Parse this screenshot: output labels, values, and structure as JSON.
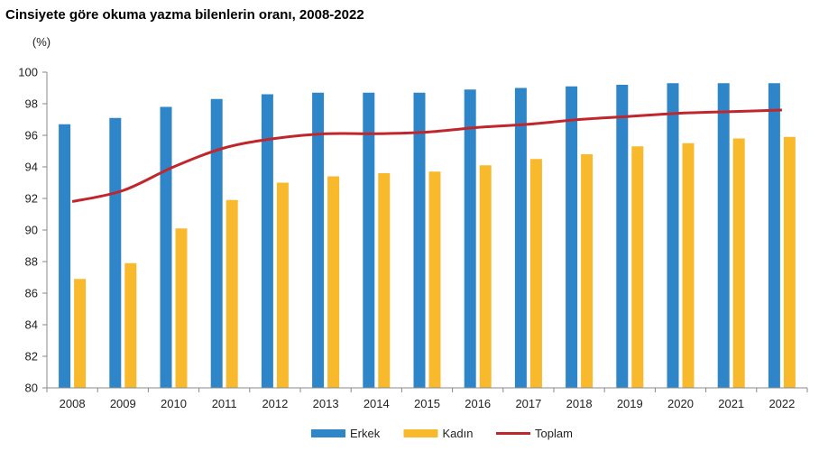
{
  "title": "Cinsiyete göre okuma yazma bilenlerin oranı, 2008-2022",
  "chart_data": {
    "type": "bar",
    "title": "Cinsiyete göre okuma yazma bilenlerin oranı, 2008-2022",
    "ylabel": "(%)",
    "xlabel": "",
    "ylim": [
      80,
      100
    ],
    "yticks": [
      80,
      82,
      84,
      86,
      88,
      90,
      92,
      94,
      96,
      98,
      100
    ],
    "categories": [
      "2008",
      "2009",
      "2010",
      "2011",
      "2012",
      "2013",
      "2014",
      "2015",
      "2016",
      "2017",
      "2018",
      "2019",
      "2020",
      "2021",
      "2022"
    ],
    "series": [
      {
        "name": "Erkek",
        "type": "bar",
        "color": "#2E86C8",
        "values": [
          96.7,
          97.1,
          97.8,
          98.3,
          98.6,
          98.7,
          98.7,
          98.7,
          98.9,
          99.0,
          99.1,
          99.2,
          99.3,
          99.3,
          99.3
        ]
      },
      {
        "name": "Kadın",
        "type": "bar",
        "color": "#F8BA2C",
        "values": [
          86.9,
          87.9,
          90.1,
          91.9,
          93.0,
          93.4,
          93.6,
          93.7,
          94.1,
          94.5,
          94.8,
          95.3,
          95.5,
          95.8,
          95.9
        ]
      },
      {
        "name": "Toplam",
        "type": "line",
        "color": "#C0272D",
        "values": [
          91.8,
          92.5,
          94.0,
          95.2,
          95.8,
          96.1,
          96.1,
          96.2,
          96.5,
          96.7,
          97.0,
          97.2,
          97.4,
          97.5,
          97.6
        ]
      }
    ],
    "legend_position": "bottom",
    "grid": false
  }
}
